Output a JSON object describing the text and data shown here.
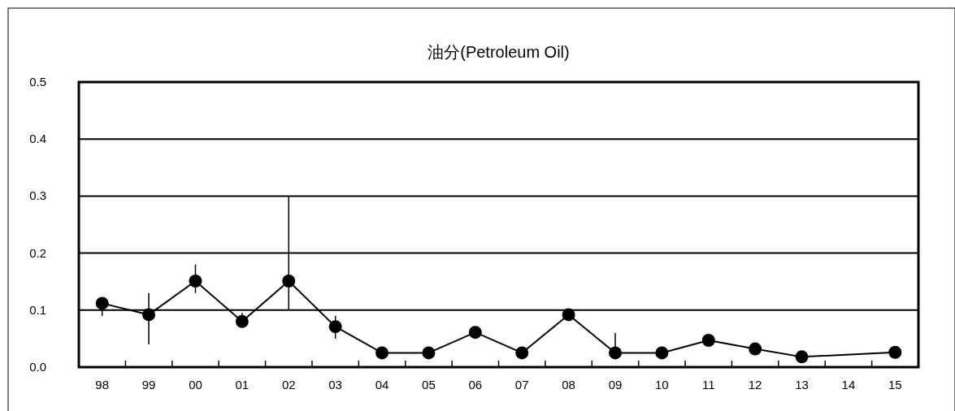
{
  "chart_data": {
    "type": "line",
    "title": "油分(Petroleum Oil)",
    "categories": [
      "98",
      "99",
      "00",
      "01",
      "02",
      "03",
      "04",
      "05",
      "06",
      "07",
      "08",
      "09",
      "10",
      "11",
      "12",
      "13",
      "14",
      "15"
    ],
    "values": [
      0.112,
      0.092,
      0.151,
      0.08,
      0.151,
      0.071,
      0.025,
      0.025,
      0.061,
      0.025,
      0.092,
      0.025,
      0.025,
      0.047,
      0.032,
      0.018,
      null,
      0.026
    ],
    "errors": [
      [
        0.09,
        0.112
      ],
      [
        0.04,
        0.13
      ],
      [
        0.13,
        0.18
      ],
      [
        0.08,
        0.095
      ],
      [
        0.1,
        0.3
      ],
      [
        0.05,
        0.09
      ],
      null,
      null,
      null,
      null,
      null,
      [
        0.025,
        0.06
      ],
      null,
      null,
      null,
      null,
      null,
      null
    ],
    "color": "#000000",
    "marker": "circle",
    "line_style": "solid",
    "grid": "y",
    "ylim": [
      0,
      0.5
    ],
    "yticks": [
      {
        "value": 0,
        "label": "0.0"
      },
      {
        "value": 0.1,
        "label": "0.1"
      },
      {
        "value": 0.2,
        "label": "0.2"
      },
      {
        "value": 0.3,
        "label": "0.3"
      },
      {
        "value": 0.4,
        "label": "0.4"
      },
      {
        "value": 0.5,
        "label": "0.5"
      }
    ]
  }
}
